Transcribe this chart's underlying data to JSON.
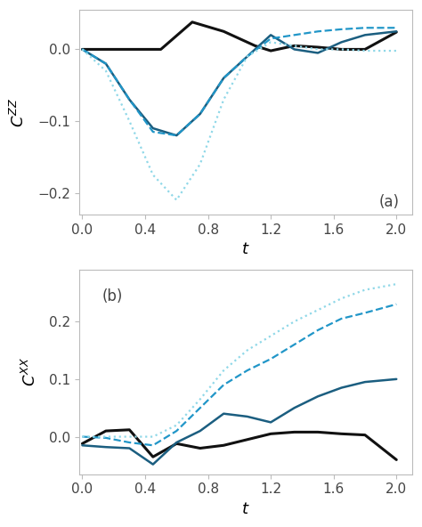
{
  "top": {
    "label": "(a)",
    "ylabel": "$C^{ZZ}$",
    "xlabel": "$t$",
    "ylim": [
      -0.23,
      0.055
    ],
    "yticks": [
      0.0,
      -0.1,
      -0.2
    ],
    "xlim": [
      -0.02,
      2.1
    ],
    "xticks": [
      0.0,
      0.4,
      0.8,
      1.2,
      1.6,
      2.0
    ],
    "lines": [
      {
        "x": [
          0.0,
          0.2,
          0.4,
          0.5,
          0.7,
          0.9,
          1.1,
          1.2,
          1.35,
          1.5,
          1.65,
          1.8,
          2.0
        ],
        "y": [
          0.0,
          0.0,
          0.0,
          0.0,
          0.038,
          0.025,
          0.005,
          -0.002,
          0.005,
          0.003,
          0.0,
          0.0,
          0.024
        ],
        "color": "#111111",
        "linestyle": "-",
        "linewidth": 2.2
      },
      {
        "x": [
          0.0,
          0.15,
          0.3,
          0.45,
          0.6,
          0.75,
          0.9,
          1.05,
          1.2,
          1.35,
          1.5,
          1.65,
          1.8,
          2.0
        ],
        "y": [
          0.0,
          -0.02,
          -0.07,
          -0.11,
          -0.12,
          -0.09,
          -0.04,
          -0.01,
          0.02,
          0.0,
          -0.005,
          0.01,
          0.02,
          0.025
        ],
        "color": "#1b5e80",
        "linestyle": "-",
        "linewidth": 1.8
      },
      {
        "x": [
          0.0,
          0.15,
          0.3,
          0.45,
          0.6,
          0.75,
          0.9,
          1.05,
          1.2,
          1.35,
          1.5,
          1.65,
          1.8,
          2.0
        ],
        "y": [
          0.0,
          -0.02,
          -0.07,
          -0.115,
          -0.12,
          -0.09,
          -0.04,
          -0.01,
          0.015,
          0.02,
          0.025,
          0.028,
          0.03,
          0.03
        ],
        "color": "#2196c8",
        "linestyle": "--",
        "linewidth": 1.6
      },
      {
        "x": [
          0.0,
          0.15,
          0.3,
          0.45,
          0.6,
          0.75,
          0.9,
          1.05,
          1.2,
          1.35,
          1.5,
          1.65,
          1.8,
          2.0
        ],
        "y": [
          0.0,
          -0.03,
          -0.1,
          -0.175,
          -0.21,
          -0.16,
          -0.07,
          -0.01,
          0.01,
          0.005,
          0.0,
          0.0,
          -0.002,
          -0.002
        ],
        "color": "#90d8e8",
        "linestyle": ":",
        "linewidth": 1.6
      }
    ]
  },
  "bottom": {
    "label": "(b)",
    "ylabel": "$C^{XX}$",
    "xlabel": "$t$",
    "ylim": [
      -0.065,
      0.29
    ],
    "yticks": [
      0.0,
      0.1,
      0.2
    ],
    "xlim": [
      -0.02,
      2.1
    ],
    "xticks": [
      0.0,
      0.4,
      0.8,
      1.2,
      1.6,
      2.0
    ],
    "lines": [
      {
        "x": [
          0.0,
          0.15,
          0.3,
          0.45,
          0.6,
          0.75,
          0.9,
          1.05,
          1.2,
          1.35,
          1.5,
          1.65,
          1.8,
          2.0
        ],
        "y": [
          -0.012,
          0.01,
          0.012,
          -0.035,
          -0.012,
          -0.02,
          -0.015,
          -0.005,
          0.005,
          0.008,
          0.008,
          0.005,
          0.003,
          -0.04
        ],
        "color": "#111111",
        "linestyle": "-",
        "linewidth": 2.2
      },
      {
        "x": [
          0.0,
          0.15,
          0.3,
          0.45,
          0.6,
          0.75,
          0.9,
          1.05,
          1.2,
          1.35,
          1.5,
          1.65,
          1.8,
          2.0
        ],
        "y": [
          -0.015,
          -0.018,
          -0.02,
          -0.048,
          -0.01,
          0.01,
          0.04,
          0.035,
          0.025,
          0.05,
          0.07,
          0.085,
          0.095,
          0.1
        ],
        "color": "#1b5e80",
        "linestyle": "-",
        "linewidth": 1.8
      },
      {
        "x": [
          0.0,
          0.15,
          0.3,
          0.45,
          0.6,
          0.75,
          0.9,
          1.05,
          1.2,
          1.35,
          1.5,
          1.65,
          1.8,
          2.0
        ],
        "y": [
          0.0,
          -0.002,
          -0.01,
          -0.015,
          0.01,
          0.05,
          0.09,
          0.115,
          0.135,
          0.16,
          0.185,
          0.205,
          0.215,
          0.23
        ],
        "color": "#2196c8",
        "linestyle": "--",
        "linewidth": 1.6
      },
      {
        "x": [
          0.0,
          0.15,
          0.3,
          0.45,
          0.6,
          0.75,
          0.9,
          1.05,
          1.2,
          1.35,
          1.5,
          1.65,
          1.8,
          2.0
        ],
        "y": [
          0.0,
          0.0,
          0.0,
          0.0,
          0.02,
          0.065,
          0.115,
          0.15,
          0.175,
          0.2,
          0.22,
          0.24,
          0.255,
          0.265
        ],
        "color": "#90d8e8",
        "linestyle": ":",
        "linewidth": 1.6
      }
    ]
  },
  "fig_bg": "#ffffff",
  "ax_bg": "#ffffff",
  "spine_color": "#bbbbbb",
  "tick_color": "#444444",
  "label_fontsize": 13,
  "tick_fontsize": 11,
  "annot_fontsize": 12
}
